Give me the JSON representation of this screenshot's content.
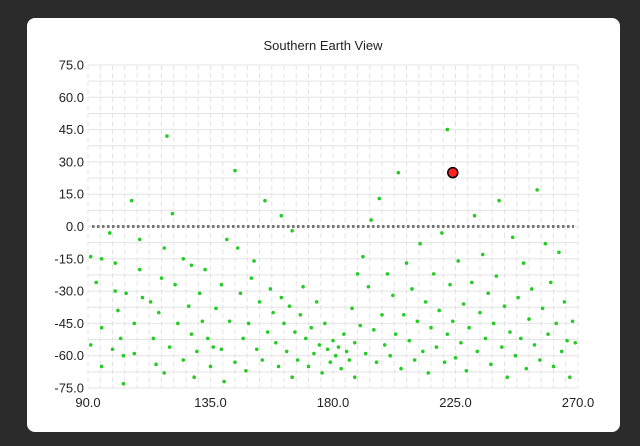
{
  "chart_data": {
    "type": "scatter",
    "title": "Southern Earth View",
    "xlim": [
      90,
      270
    ],
    "ylim": [
      -75,
      75
    ],
    "x_ticks": [
      "90.0",
      "135.0",
      "180.0",
      "225.0",
      "270.0"
    ],
    "y_ticks": [
      "75.0",
      "60.0",
      "45.0",
      "30.0",
      "15.0",
      "0.0",
      "-15.0",
      "-30.0",
      "-45.0",
      "-60.0",
      "-75.0"
    ],
    "grid": true,
    "reference_line_y": 0,
    "colors": {
      "points": "#22cc22",
      "highlight": "#ff2222",
      "grid": "#e4e4e4",
      "reference": "#777777"
    },
    "highlight": {
      "x": 224,
      "y": 25
    },
    "series": [
      {
        "values": [
          [
            91,
            -14
          ],
          [
            91,
            -55
          ],
          [
            93,
            -26
          ],
          [
            95,
            -15
          ],
          [
            95,
            -47
          ],
          [
            95,
            -65
          ],
          [
            98,
            -3
          ],
          [
            99,
            -57
          ],
          [
            100,
            -17
          ],
          [
            100,
            -30
          ],
          [
            101,
            -39
          ],
          [
            102,
            -52
          ],
          [
            103,
            -73
          ],
          [
            103,
            -60
          ],
          [
            104,
            -31
          ],
          [
            106,
            12
          ],
          [
            107,
            -45
          ],
          [
            107,
            -59
          ],
          [
            109,
            -6
          ],
          [
            109,
            -20
          ],
          [
            110,
            -33
          ],
          [
            113,
            -35
          ],
          [
            114,
            -52
          ],
          [
            115,
            -64
          ],
          [
            116,
            -40
          ],
          [
            117,
            -24
          ],
          [
            118,
            -68
          ],
          [
            118,
            -10
          ],
          [
            119,
            42
          ],
          [
            120,
            -56
          ],
          [
            121,
            6
          ],
          [
            122,
            -27
          ],
          [
            123,
            -45
          ],
          [
            125,
            -15
          ],
          [
            125,
            -62
          ],
          [
            127,
            -37
          ],
          [
            128,
            -50
          ],
          [
            128,
            -18
          ],
          [
            129,
            -70
          ],
          [
            130,
            -58
          ],
          [
            131,
            -31
          ],
          [
            132,
            -44
          ],
          [
            133,
            -20
          ],
          [
            134,
            -52
          ],
          [
            135,
            -65
          ],
          [
            136,
            -56
          ],
          [
            137,
            -38
          ],
          [
            139,
            -27
          ],
          [
            139,
            -57
          ],
          [
            140,
            -72
          ],
          [
            141,
            -6
          ],
          [
            142,
            -44
          ],
          [
            144,
            26
          ],
          [
            144,
            -63
          ],
          [
            145,
            -10
          ],
          [
            146,
            -31
          ],
          [
            147,
            -52
          ],
          [
            148,
            -67
          ],
          [
            149,
            -45
          ],
          [
            150,
            -24
          ],
          [
            151,
            -16
          ],
          [
            152,
            -57
          ],
          [
            153,
            -35
          ],
          [
            154,
            -62
          ],
          [
            155,
            12
          ],
          [
            156,
            -49
          ],
          [
            157,
            -29
          ],
          [
            158,
            -40
          ],
          [
            159,
            -54
          ],
          [
            160,
            -65
          ],
          [
            161,
            5
          ],
          [
            161,
            -33
          ],
          [
            162,
            -45
          ],
          [
            163,
            -58
          ],
          [
            164,
            -37
          ],
          [
            165,
            -2
          ],
          [
            165,
            -70
          ],
          [
            166,
            -49
          ],
          [
            167,
            -62
          ],
          [
            168,
            -41
          ],
          [
            169,
            -28
          ],
          [
            170,
            -52
          ],
          [
            171,
            -65
          ],
          [
            172,
            -47
          ],
          [
            173,
            -59
          ],
          [
            174,
            -35
          ],
          [
            175,
            -55
          ],
          [
            176,
            -68
          ],
          [
            177,
            -45
          ],
          [
            178,
            -57
          ],
          [
            179,
            -63
          ],
          [
            180,
            -53
          ],
          [
            181,
            -60
          ],
          [
            182,
            -56
          ],
          [
            183,
            -66
          ],
          [
            184,
            -50
          ],
          [
            185,
            -58
          ],
          [
            186,
            -62
          ],
          [
            187,
            -38
          ],
          [
            188,
            -54
          ],
          [
            188,
            -70
          ],
          [
            189,
            -22
          ],
          [
            190,
            -46
          ],
          [
            191,
            -14
          ],
          [
            192,
            -59
          ],
          [
            193,
            -28
          ],
          [
            194,
            3
          ],
          [
            195,
            -48
          ],
          [
            196,
            -63
          ],
          [
            197,
            13
          ],
          [
            198,
            -41
          ],
          [
            199,
            -55
          ],
          [
            200,
            -22
          ],
          [
            201,
            -60
          ],
          [
            202,
            -32
          ],
          [
            203,
            -50
          ],
          [
            204,
            25
          ],
          [
            205,
            -66
          ],
          [
            206,
            -41
          ],
          [
            207,
            -17
          ],
          [
            208,
            -53
          ],
          [
            209,
            -29
          ],
          [
            210,
            -62
          ],
          [
            211,
            -44
          ],
          [
            212,
            -8
          ],
          [
            213,
            -58
          ],
          [
            214,
            -35
          ],
          [
            215,
            -68
          ],
          [
            216,
            -47
          ],
          [
            217,
            -22
          ],
          [
            218,
            -56
          ],
          [
            219,
            -39
          ],
          [
            220,
            -3
          ],
          [
            221,
            -63
          ],
          [
            222,
            45
          ],
          [
            222,
            -50
          ],
          [
            223,
            -27
          ],
          [
            224,
            -44
          ],
          [
            225,
            -61
          ],
          [
            226,
            -16
          ],
          [
            227,
            -54
          ],
          [
            228,
            -36
          ],
          [
            229,
            -67
          ],
          [
            230,
            -47
          ],
          [
            231,
            -26
          ],
          [
            232,
            5
          ],
          [
            233,
            -58
          ],
          [
            234,
            -40
          ],
          [
            235,
            -13
          ],
          [
            236,
            -52
          ],
          [
            237,
            -31
          ],
          [
            238,
            -64
          ],
          [
            239,
            -45
          ],
          [
            240,
            -23
          ],
          [
            241,
            12
          ],
          [
            242,
            -56
          ],
          [
            243,
            -37
          ],
          [
            244,
            -70
          ],
          [
            245,
            -49
          ],
          [
            246,
            -5
          ],
          [
            247,
            -60
          ],
          [
            248,
            -33
          ],
          [
            249,
            -52
          ],
          [
            250,
            -17
          ],
          [
            251,
            -66
          ],
          [
            252,
            -43
          ],
          [
            253,
            -29
          ],
          [
            254,
            -55
          ],
          [
            255,
            17
          ],
          [
            256,
            -62
          ],
          [
            257,
            -38
          ],
          [
            258,
            -8
          ],
          [
            259,
            -50
          ],
          [
            260,
            -26
          ],
          [
            261,
            -65
          ],
          [
            262,
            -45
          ],
          [
            263,
            -12
          ],
          [
            264,
            -58
          ],
          [
            265,
            -35
          ],
          [
            266,
            -53
          ],
          [
            267,
            -70
          ],
          [
            268,
            -44
          ],
          [
            269,
            -54
          ]
        ]
      }
    ]
  }
}
